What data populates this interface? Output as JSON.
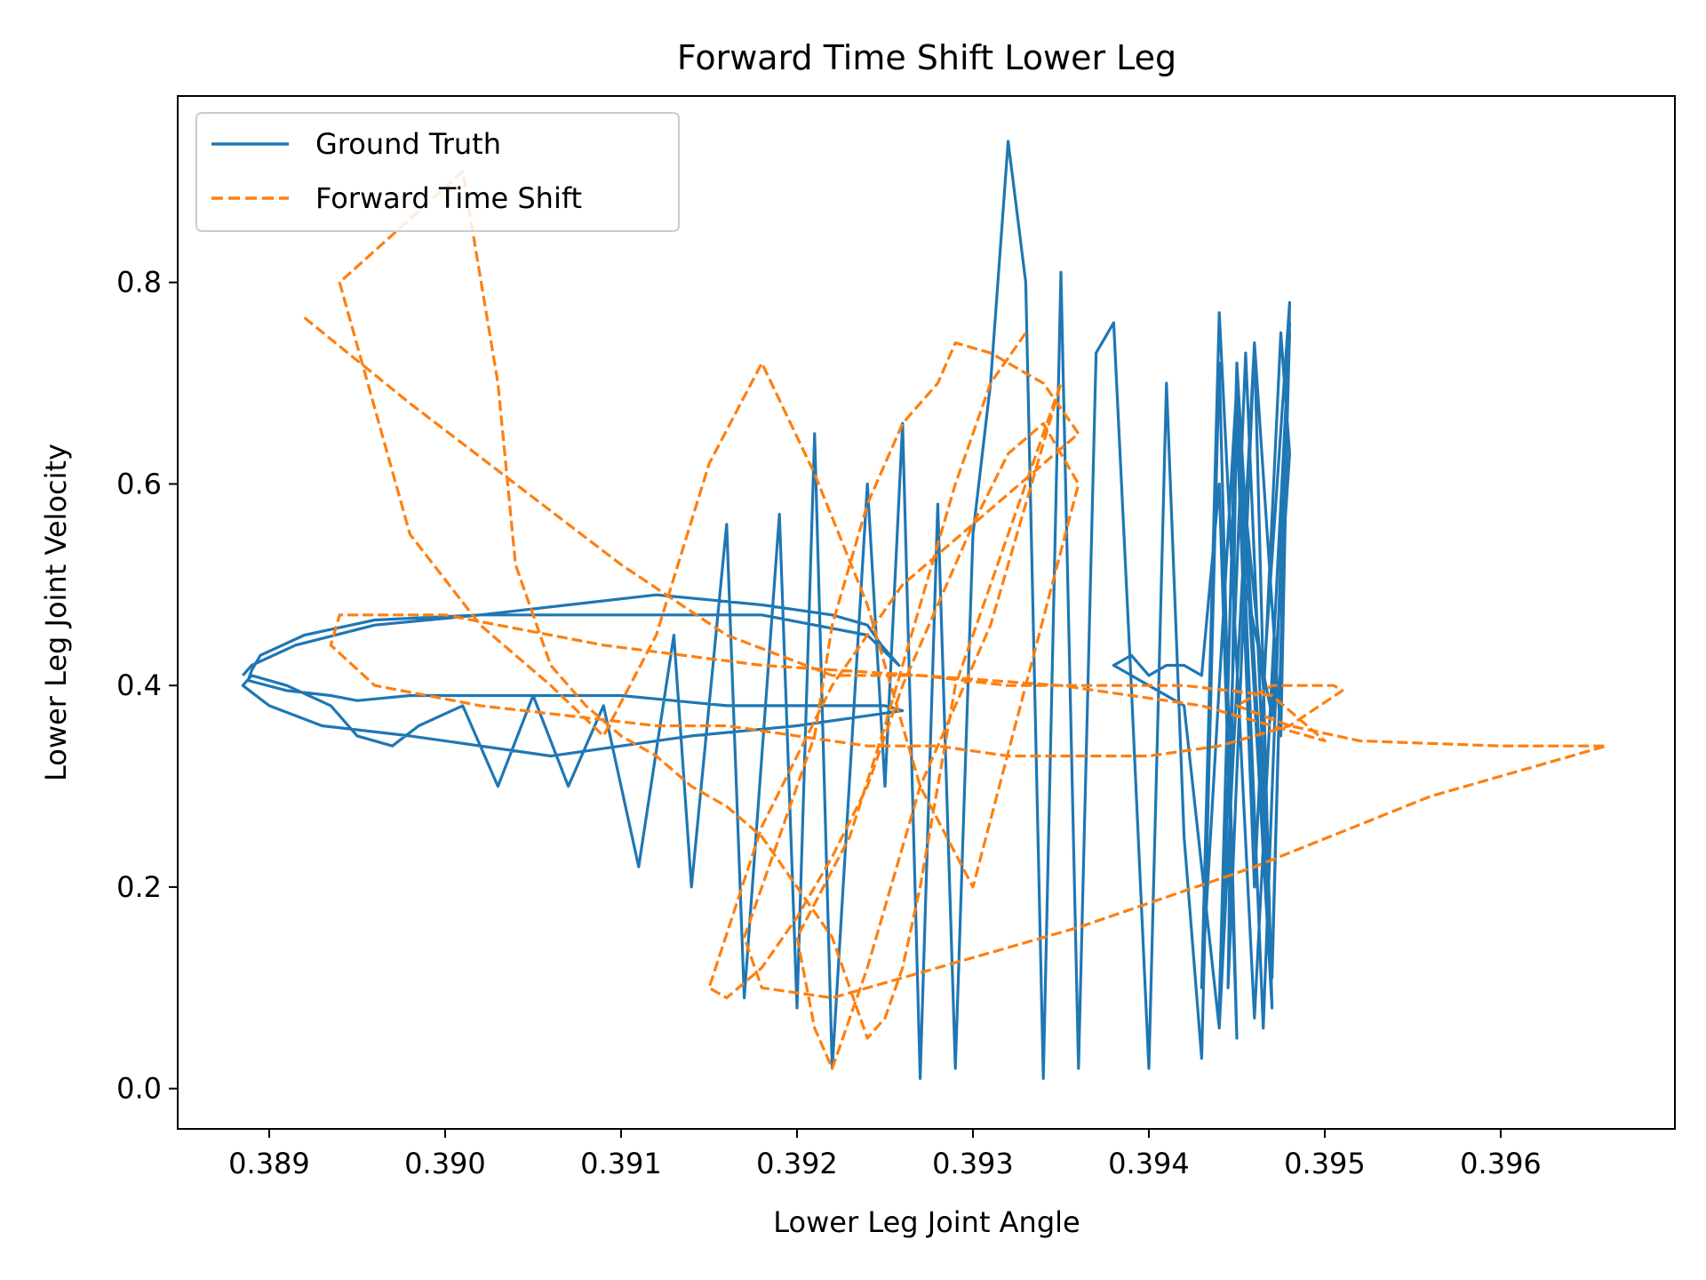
{
  "chart_data": {
    "type": "line",
    "title": "Forward Time Shift Lower Leg",
    "xlabel": "Lower Leg Joint Angle",
    "ylabel": "Lower Leg Joint Velocity",
    "xlim": [
      0.38848,
      0.39699
    ],
    "ylim": [
      -0.04,
      0.985
    ],
    "xticks": [
      "0.389",
      "0.390",
      "0.391",
      "0.392",
      "0.393",
      "0.394",
      "0.395",
      "0.396"
    ],
    "yticks": [
      "0.0",
      "0.2",
      "0.4",
      "0.6",
      "0.8"
    ],
    "grid": false,
    "legend_position": "top-left",
    "series": [
      {
        "name": "Ground Truth",
        "color": "#1f77b4",
        "style": "solid",
        "x": [
          0.38885,
          0.3889,
          0.38915,
          0.3896,
          0.3902,
          0.3907,
          0.3912,
          0.3915,
          0.3918,
          0.3922,
          0.3924,
          0.39248,
          0.39258,
          0.3924,
          0.3918,
          0.391,
          0.3902,
          0.3896,
          0.3892,
          0.38895,
          0.3889,
          0.38888,
          0.3891,
          0.38935,
          0.3895,
          0.3898,
          0.3902,
          0.3906,
          0.391,
          0.3913,
          0.3916,
          0.3919,
          0.3922,
          0.3925,
          0.3926,
          0.3924,
          0.392,
          0.3914,
          0.3906,
          0.3898,
          0.3893,
          0.389,
          0.38885,
          0.3889,
          0.3891,
          0.38935,
          0.3895,
          0.3897,
          0.38985,
          0.3901,
          0.3903,
          0.3905,
          0.3907,
          0.3909,
          0.3911,
          0.3913,
          0.3914,
          0.3916,
          0.3917,
          0.3919,
          0.392,
          0.3921,
          0.3922,
          0.3924,
          0.3925,
          0.3926,
          0.3927,
          0.3928,
          0.3929,
          0.393,
          0.3931,
          0.3932,
          0.3933,
          0.3934,
          0.3935,
          0.3936,
          0.3937,
          0.3938,
          0.3939,
          0.394,
          0.3941,
          0.3942,
          0.3943,
          0.3944,
          0.3945,
          0.3944,
          0.3943,
          0.3942,
          0.3941,
          0.394,
          0.3939,
          0.3938,
          0.394,
          0.3942,
          0.3944,
          0.3946,
          0.3947,
          0.3945,
          0.3943,
          0.3944,
          0.3946,
          0.3948,
          0.3947,
          0.3945,
          0.3944,
          0.39455,
          0.3947,
          0.3948,
          0.39465,
          0.3945,
          0.39445,
          0.3946,
          0.39475,
          0.3948,
          0.39465,
          0.3945,
          0.3946,
          0.39475,
          0.3948,
          0.3947,
          0.39455
        ],
        "y": [
          0.41,
          0.42,
          0.44,
          0.46,
          0.47,
          0.48,
          0.49,
          0.485,
          0.48,
          0.47,
          0.46,
          0.44,
          0.42,
          0.45,
          0.47,
          0.47,
          0.47,
          0.465,
          0.45,
          0.43,
          0.415,
          0.405,
          0.395,
          0.39,
          0.385,
          0.39,
          0.39,
          0.39,
          0.39,
          0.385,
          0.38,
          0.38,
          0.38,
          0.38,
          0.375,
          0.37,
          0.36,
          0.35,
          0.33,
          0.35,
          0.36,
          0.38,
          0.4,
          0.41,
          0.4,
          0.38,
          0.35,
          0.34,
          0.36,
          0.38,
          0.3,
          0.39,
          0.3,
          0.38,
          0.22,
          0.45,
          0.2,
          0.56,
          0.09,
          0.57,
          0.08,
          0.65,
          0.02,
          0.6,
          0.3,
          0.66,
          0.01,
          0.58,
          0.02,
          0.55,
          0.7,
          0.94,
          0.8,
          0.01,
          0.81,
          0.02,
          0.73,
          0.76,
          0.4,
          0.02,
          0.7,
          0.25,
          0.03,
          0.72,
          0.05,
          0.6,
          0.41,
          0.42,
          0.42,
          0.41,
          0.43,
          0.42,
          0.4,
          0.38,
          0.06,
          0.74,
          0.08,
          0.7,
          0.1,
          0.77,
          0.07,
          0.75,
          0.12,
          0.72,
          0.08,
          0.73,
          0.11,
          0.76,
          0.06,
          0.7,
          0.1,
          0.74,
          0.35,
          0.78,
          0.4,
          0.66,
          0.2,
          0.75,
          0.63,
          0.37,
          0.5
        ]
      },
      {
        "name": "Forward Time Shift",
        "color": "#ff7f0e",
        "style": "dashed",
        "x": [
          0.3892,
          0.3898,
          0.3904,
          0.391,
          0.3916,
          0.3922,
          0.3927,
          0.3932,
          0.3937,
          0.3942,
          0.3947,
          0.395,
          0.3943,
          0.3935,
          0.3927,
          0.3918,
          0.3909,
          0.39,
          0.3894,
          0.38935,
          0.3896,
          0.3902,
          0.3907,
          0.3912,
          0.3916,
          0.392,
          0.3924,
          0.3928,
          0.3932,
          0.3936,
          0.394,
          0.3944,
          0.3948,
          0.3951,
          0.39505,
          0.3947,
          0.3945,
          0.3948,
          0.3952,
          0.396,
          0.3966,
          0.3956,
          0.3946,
          0.3936,
          0.3926,
          0.3922,
          0.3918,
          0.3917,
          0.3919,
          0.3921,
          0.3922,
          0.3924,
          0.3926,
          0.3928,
          0.3929,
          0.3931,
          0.3933,
          0.3934,
          0.3936,
          0.393,
          0.3926,
          0.3922,
          0.3918,
          0.3915,
          0.3916,
          0.3918,
          0.392,
          0.3922,
          0.3924,
          0.3926,
          0.3928,
          0.393,
          0.3932,
          0.3934,
          0.3936,
          0.393,
          0.3927,
          0.3924,
          0.3921,
          0.3918,
          0.3915,
          0.3912,
          0.3909,
          0.3906,
          0.3902,
          0.3898,
          0.3894,
          0.3901,
          0.3903,
          0.3904,
          0.3906,
          0.3908,
          0.391,
          0.3912,
          0.3914,
          0.3916,
          0.3918,
          0.392,
          0.3922,
          0.3923,
          0.3924,
          0.3925,
          0.3926,
          0.3927,
          0.3928,
          0.3929,
          0.3931,
          0.3933,
          0.3935,
          0.3931,
          0.3927,
          0.3924,
          0.3922,
          0.3921,
          0.392,
          0.3923,
          0.3925,
          0.3927,
          0.3929,
          0.3931,
          0.3933
        ],
        "y": [
          0.765,
          0.68,
          0.6,
          0.52,
          0.45,
          0.41,
          0.41,
          0.4,
          0.4,
          0.4,
          0.39,
          0.345,
          0.38,
          0.4,
          0.41,
          0.42,
          0.44,
          0.47,
          0.47,
          0.44,
          0.4,
          0.38,
          0.37,
          0.36,
          0.36,
          0.35,
          0.34,
          0.34,
          0.33,
          0.33,
          0.33,
          0.34,
          0.36,
          0.395,
          0.4,
          0.4,
          0.38,
          0.36,
          0.345,
          0.34,
          0.34,
          0.29,
          0.22,
          0.16,
          0.11,
          0.09,
          0.1,
          0.15,
          0.25,
          0.35,
          0.46,
          0.58,
          0.66,
          0.7,
          0.74,
          0.73,
          0.71,
          0.7,
          0.65,
          0.56,
          0.5,
          0.4,
          0.26,
          0.1,
          0.09,
          0.12,
          0.17,
          0.23,
          0.3,
          0.4,
          0.48,
          0.56,
          0.63,
          0.66,
          0.6,
          0.2,
          0.3,
          0.48,
          0.61,
          0.72,
          0.62,
          0.45,
          0.35,
          0.4,
          0.46,
          0.55,
          0.8,
          0.91,
          0.7,
          0.52,
          0.42,
          0.38,
          0.35,
          0.33,
          0.3,
          0.28,
          0.25,
          0.2,
          0.15,
          0.1,
          0.05,
          0.07,
          0.12,
          0.2,
          0.3,
          0.4,
          0.5,
          0.6,
          0.7,
          0.46,
          0.3,
          0.12,
          0.02,
          0.06,
          0.15,
          0.25,
          0.36,
          0.48,
          0.6,
          0.7,
          0.75
        ]
      }
    ]
  }
}
